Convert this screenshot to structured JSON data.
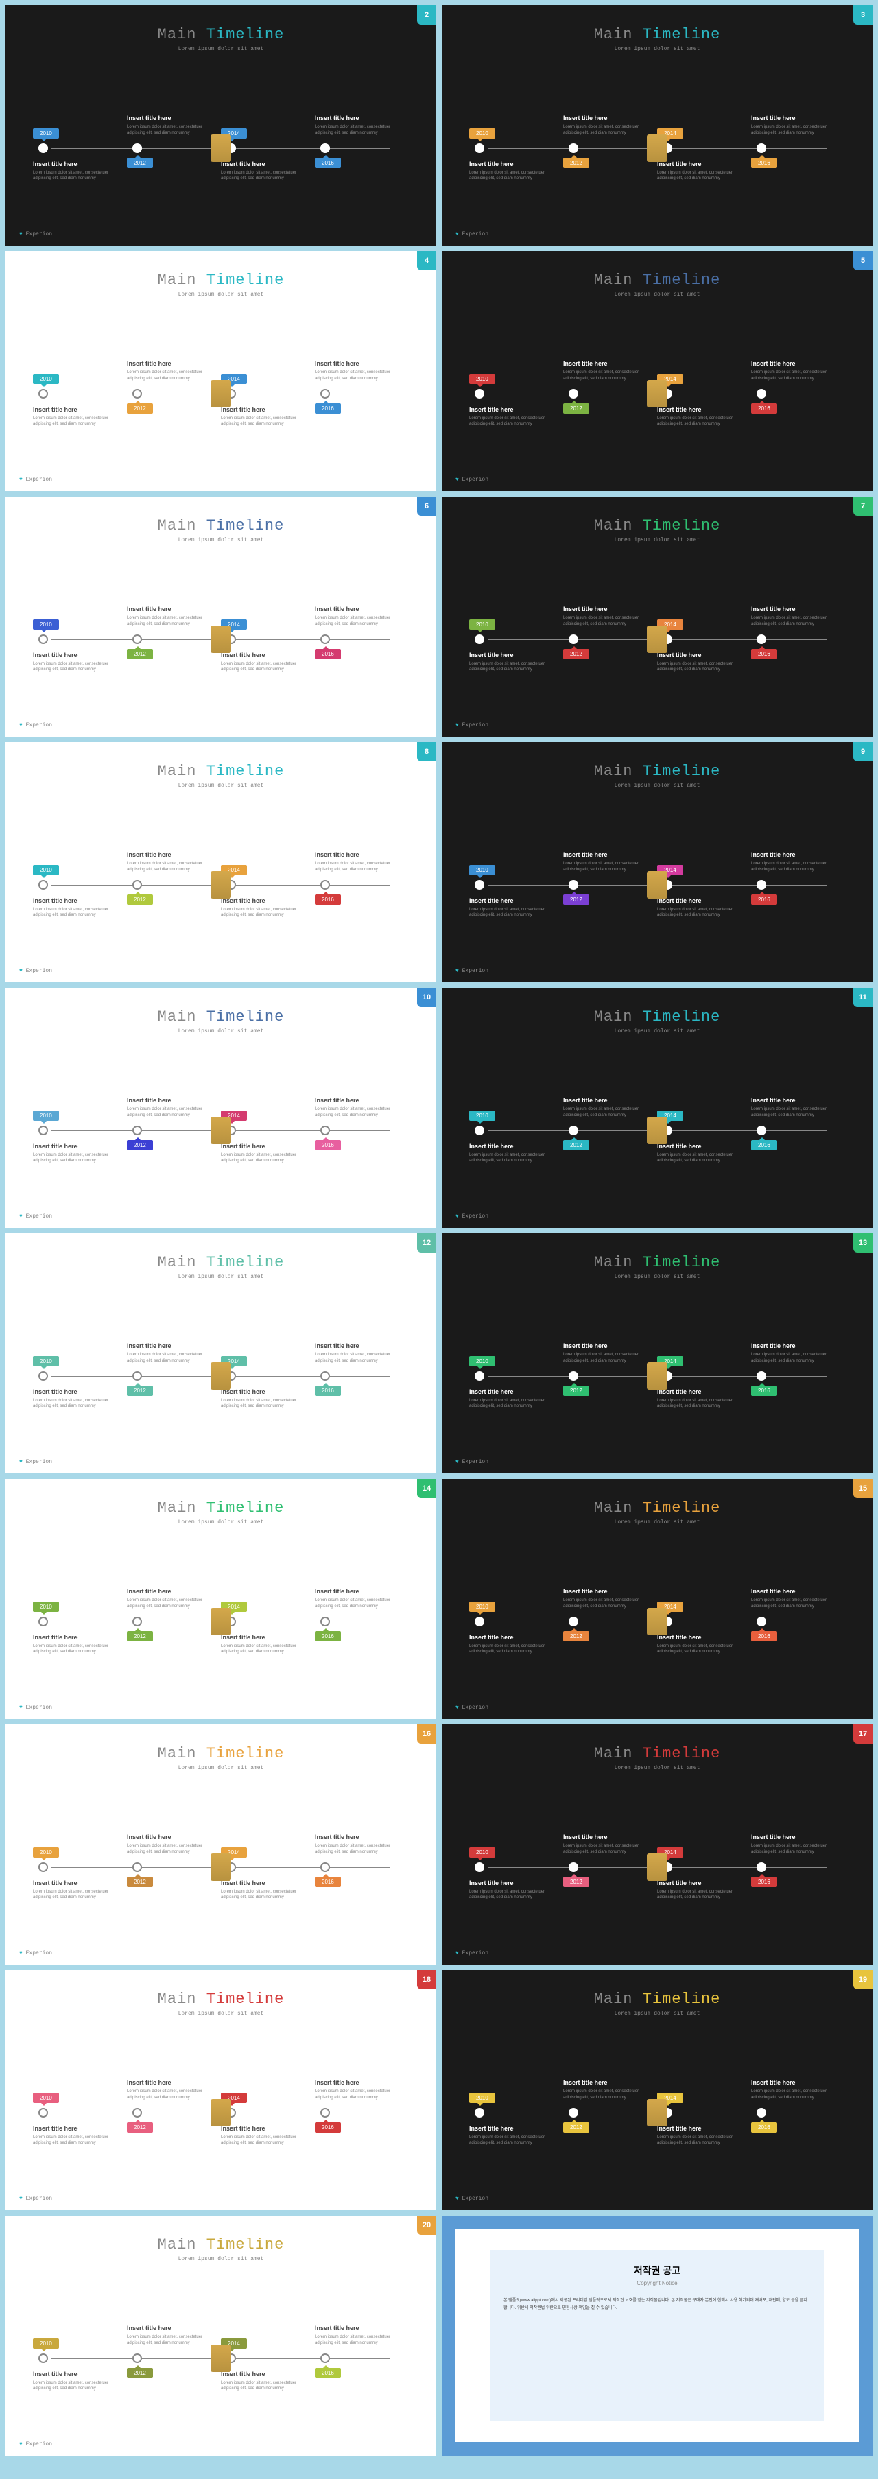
{
  "title_main": "Main",
  "title_accent": "Timeline",
  "subtitle": "Lorem ipsum dolor sit amet",
  "item_heading": "Insert title here",
  "item_text": "Lorem ipsum dolor sit amet, consectetuer adipiscing elit, sed diam nonummy",
  "footer": "Experion",
  "years": [
    "2010",
    "2012",
    "2014",
    "2016"
  ],
  "notice_title": "저작권 공고",
  "notice_sub": "Copyright Notice",
  "notice_body": "본 템플릿(www.allppt.com)에서 제공된 프리미엄 템플릿으로서 저작권 보호를 받는 저작물입니다. 본 저작물은 구매자 본인에 한해서 사용 허가되며 재배포, 재판매, 양도 등을 금지합니다. 위반시 저작권법 위반으로 민형사상 책임을 질 수 있습니다.",
  "slides": [
    {
      "num": 2,
      "bg": "dark",
      "accent": "#2bb8c4",
      "corner": "#2bb8c4",
      "colors": [
        "#3b8fd4",
        "#3b8fd4",
        "#3b8fd4",
        "#3b8fd4"
      ]
    },
    {
      "num": 3,
      "bg": "dark",
      "accent": "#2bb8c4",
      "corner": "#2bb8c4",
      "colors": [
        "#e8a23d",
        "#e8a23d",
        "#e8a23d",
        "#e8a23d"
      ]
    },
    {
      "num": 4,
      "bg": "light",
      "accent": "#2bb8c4",
      "corner": "#2bb8c4",
      "colors": [
        "#2bb8c4",
        "#e8a23d",
        "#3b8fd4",
        "#3b8fd4"
      ]
    },
    {
      "num": 5,
      "bg": "dark",
      "accent": "#4a6fa5",
      "corner": "#3b8fd4",
      "colors": [
        "#d43b3b",
        "#7cb342",
        "#e8a23d",
        "#d43b3b"
      ]
    },
    {
      "num": 6,
      "bg": "light",
      "accent": "#4a6fa5",
      "corner": "#3b8fd4",
      "colors": [
        "#3b5fd4",
        "#7cb342",
        "#3b8fd4",
        "#d43b6f"
      ]
    },
    {
      "num": 7,
      "bg": "dark",
      "accent": "#2fbf71",
      "corner": "#2fbf71",
      "colors": [
        "#7cb342",
        "#d43b3b",
        "#e8843d",
        "#d43b3b"
      ]
    },
    {
      "num": 8,
      "bg": "light",
      "accent": "#2bb8c4",
      "corner": "#2bb8c4",
      "colors": [
        "#2bb8c4",
        "#b0c93d",
        "#e8a23d",
        "#d43b3b"
      ]
    },
    {
      "num": 9,
      "bg": "dark",
      "accent": "#2bb8c4",
      "corner": "#2bb8c4",
      "colors": [
        "#3b8fd4",
        "#7b3fd4",
        "#d43b9f",
        "#d43b3b"
      ]
    },
    {
      "num": 10,
      "bg": "light",
      "accent": "#4a6fa5",
      "corner": "#3b8fd4",
      "colors": [
        "#5ba8d4",
        "#3b3fd4",
        "#d43b6f",
        "#e85f9f"
      ]
    },
    {
      "num": 11,
      "bg": "dark",
      "accent": "#2bb8c4",
      "corner": "#2bb8c4",
      "colors": [
        "#2bb8c4",
        "#2bb8c4",
        "#2bb8c4",
        "#2bb8c4"
      ]
    },
    {
      "num": 12,
      "bg": "light",
      "accent": "#5fbfa8",
      "corner": "#5fbfa8",
      "colors": [
        "#5fbfa8",
        "#5fbfa8",
        "#5fbfa8",
        "#5fbfa8"
      ]
    },
    {
      "num": 13,
      "bg": "dark",
      "accent": "#2fbf71",
      "corner": "#2fbf71",
      "colors": [
        "#2fbf71",
        "#2fbf71",
        "#2fbf71",
        "#2fbf71"
      ]
    },
    {
      "num": 14,
      "bg": "light",
      "accent": "#2fbf71",
      "corner": "#2fbf71",
      "colors": [
        "#7cb342",
        "#7cb342",
        "#b0c93d",
        "#7cb342"
      ]
    },
    {
      "num": 15,
      "bg": "dark",
      "accent": "#e8a23d",
      "corner": "#e8a23d",
      "colors": [
        "#e8a23d",
        "#e8843d",
        "#e8a23d",
        "#e85f3d"
      ]
    },
    {
      "num": 16,
      "bg": "light",
      "accent": "#e8a23d",
      "corner": "#e8a23d",
      "colors": [
        "#e8a23d",
        "#c98a3d",
        "#e8a23d",
        "#e8843d"
      ]
    },
    {
      "num": 17,
      "bg": "dark",
      "accent": "#d43b3b",
      "corner": "#d43b3b",
      "colors": [
        "#d43b3b",
        "#e85f7f",
        "#d43b3b",
        "#d43b3b"
      ]
    },
    {
      "num": 18,
      "bg": "light",
      "accent": "#d43b3b",
      "corner": "#d43b3b",
      "colors": [
        "#e85f7f",
        "#e85f7f",
        "#d43b3b",
        "#d43b3b"
      ]
    },
    {
      "num": 19,
      "bg": "dark",
      "accent": "#e8c43d",
      "corner": "#e8c43d",
      "colors": [
        "#e8c43d",
        "#e8c43d",
        "#e8c43d",
        "#e8c43d"
      ]
    },
    {
      "num": 20,
      "bg": "light",
      "accent": "#c9a83d",
      "corner": "#e8a23d",
      "colors": [
        "#c9a83d",
        "#8a9a3d",
        "#8a9a3d",
        "#b0c93d"
      ]
    }
  ]
}
